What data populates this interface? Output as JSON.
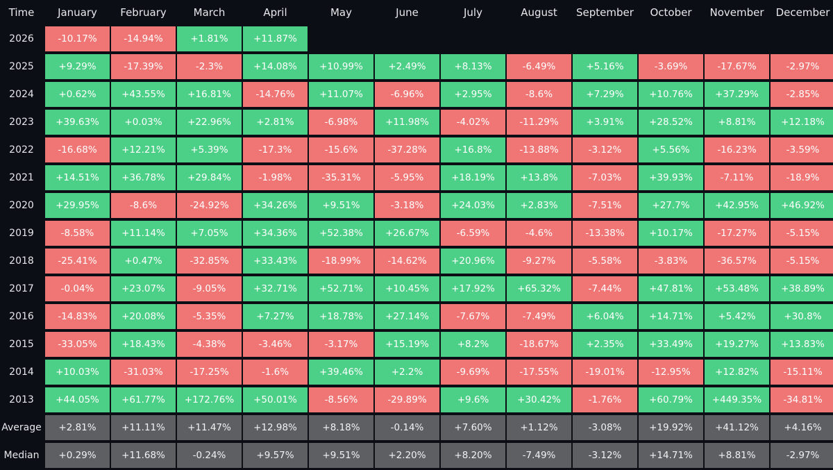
{
  "chart_data": {
    "type": "heatmap",
    "corner_label": "Time",
    "columns": [
      "January",
      "February",
      "March",
      "April",
      "May",
      "June",
      "July",
      "August",
      "September",
      "October",
      "November",
      "December"
    ],
    "rows": [
      {
        "label": "2026",
        "values": [
          "-10.17%",
          "-14.94%",
          "+1.81%",
          "+11.87%"
        ]
      },
      {
        "label": "2025",
        "values": [
          "+9.29%",
          "-17.39%",
          "-2.3%",
          "+14.08%",
          "+10.99%",
          "+2.49%",
          "+8.13%",
          "-6.49%",
          "+5.16%",
          "-3.69%",
          "-17.67%",
          "-2.97%"
        ]
      },
      {
        "label": "2024",
        "values": [
          "+0.62%",
          "+43.55%",
          "+16.81%",
          "-14.76%",
          "+11.07%",
          "-6.96%",
          "+2.95%",
          "-8.6%",
          "+7.29%",
          "+10.76%",
          "+37.29%",
          "-2.85%"
        ]
      },
      {
        "label": "2023",
        "values": [
          "+39.63%",
          "+0.03%",
          "+22.96%",
          "+2.81%",
          "-6.98%",
          "+11.98%",
          "-4.02%",
          "-11.29%",
          "+3.91%",
          "+28.52%",
          "+8.81%",
          "+12.18%"
        ]
      },
      {
        "label": "2022",
        "values": [
          "-16.68%",
          "+12.21%",
          "+5.39%",
          "-17.3%",
          "-15.6%",
          "-37.28%",
          "+16.8%",
          "-13.88%",
          "-3.12%",
          "+5.56%",
          "-16.23%",
          "-3.59%"
        ]
      },
      {
        "label": "2021",
        "values": [
          "+14.51%",
          "+36.78%",
          "+29.84%",
          "-1.98%",
          "-35.31%",
          "-5.95%",
          "+18.19%",
          "+13.8%",
          "-7.03%",
          "+39.93%",
          "-7.11%",
          "-18.9%"
        ]
      },
      {
        "label": "2020",
        "values": [
          "+29.95%",
          "-8.6%",
          "-24.92%",
          "+34.26%",
          "+9.51%",
          "-3.18%",
          "+24.03%",
          "+2.83%",
          "-7.51%",
          "+27.7%",
          "+42.95%",
          "+46.92%"
        ]
      },
      {
        "label": "2019",
        "values": [
          "-8.58%",
          "+11.14%",
          "+7.05%",
          "+34.36%",
          "+52.38%",
          "+26.67%",
          "-6.59%",
          "-4.6%",
          "-13.38%",
          "+10.17%",
          "-17.27%",
          "-5.15%"
        ]
      },
      {
        "label": "2018",
        "values": [
          "-25.41%",
          "+0.47%",
          "-32.85%",
          "+33.43%",
          "-18.99%",
          "-14.62%",
          "+20.96%",
          "-9.27%",
          "-5.58%",
          "-3.83%",
          "-36.57%",
          "-5.15%"
        ]
      },
      {
        "label": "2017",
        "values": [
          "-0.04%",
          "+23.07%",
          "-9.05%",
          "+32.71%",
          "+52.71%",
          "+10.45%",
          "+17.92%",
          "+65.32%",
          "-7.44%",
          "+47.81%",
          "+53.48%",
          "+38.89%"
        ]
      },
      {
        "label": "2016",
        "values": [
          "-14.83%",
          "+20.08%",
          "-5.35%",
          "+7.27%",
          "+18.78%",
          "+27.14%",
          "-7.67%",
          "-7.49%",
          "+6.04%",
          "+14.71%",
          "+5.42%",
          "+30.8%"
        ]
      },
      {
        "label": "2015",
        "values": [
          "-33.05%",
          "+18.43%",
          "-4.38%",
          "-3.46%",
          "-3.17%",
          "+15.19%",
          "+8.2%",
          "-18.67%",
          "+2.35%",
          "+33.49%",
          "+19.27%",
          "+13.83%"
        ]
      },
      {
        "label": "2014",
        "values": [
          "+10.03%",
          "-31.03%",
          "-17.25%",
          "-1.6%",
          "+39.46%",
          "+2.2%",
          "-9.69%",
          "-17.55%",
          "-19.01%",
          "-12.95%",
          "+12.82%",
          "-15.11%"
        ]
      },
      {
        "label": "2013",
        "values": [
          "+44.05%",
          "+61.77%",
          "+172.76%",
          "+50.01%",
          "-8.56%",
          "-29.89%",
          "+9.6%",
          "+30.42%",
          "-1.76%",
          "+60.79%",
          "+449.35%",
          "-34.81%"
        ]
      }
    ],
    "summary_rows": [
      {
        "label": "Average",
        "values": [
          "+2.81%",
          "+11.11%",
          "+11.47%",
          "+12.98%",
          "+8.18%",
          "-0.14%",
          "+7.60%",
          "+1.12%",
          "-3.08%",
          "+19.92%",
          "+41.12%",
          "+4.16%"
        ]
      },
      {
        "label": "Median",
        "values": [
          "+0.29%",
          "+11.68%",
          "-0.24%",
          "+9.57%",
          "+9.51%",
          "+2.20%",
          "+8.20%",
          "-7.49%",
          "-3.12%",
          "+14.71%",
          "+8.81%",
          "-2.97%"
        ]
      }
    ],
    "colors": {
      "positive": "#4ccf86",
      "negative": "#f07575",
      "summary": "#5d5f63",
      "background": "#0b0e14"
    }
  }
}
